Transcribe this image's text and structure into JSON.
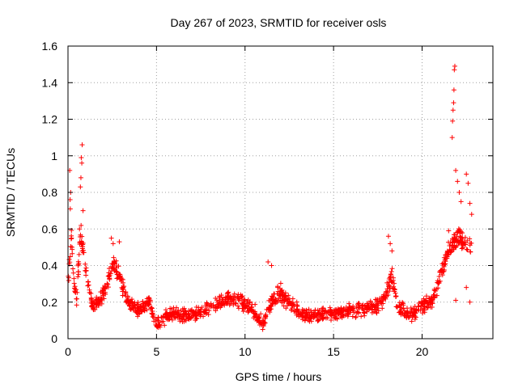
{
  "chart_data": {
    "type": "scatter",
    "title": "Day 267 of 2023, SRMTID for receiver osls",
    "xlabel": "GPS time / hours",
    "ylabel": "SRMTID / TECUs",
    "xlim": [
      0,
      24
    ],
    "ylim": [
      0,
      1.6
    ],
    "xticks": [
      0,
      5,
      10,
      15,
      20
    ],
    "yticks": [
      0,
      0.2,
      0.4,
      0.6,
      0.8,
      1,
      1.2,
      1.4,
      1.6
    ],
    "ytick_labels": [
      "0",
      "0.2",
      "0.4",
      "0.6",
      "0.8",
      "1",
      "1.2",
      "1.4",
      "1.6"
    ],
    "grid": true,
    "marker": "+",
    "series": [
      {
        "name": "SRMTID",
        "color": "#ff0000",
        "profile": [
          [
            0.0,
            0.28
          ],
          [
            0.1,
            0.45
          ],
          [
            0.2,
            0.55
          ],
          [
            0.35,
            0.3
          ],
          [
            0.5,
            0.22
          ],
          [
            0.7,
            0.6
          ],
          [
            0.9,
            0.45
          ],
          [
            1.1,
            0.3
          ],
          [
            1.4,
            0.18
          ],
          [
            1.8,
            0.2
          ],
          [
            2.2,
            0.3
          ],
          [
            2.5,
            0.4
          ],
          [
            2.8,
            0.38
          ],
          [
            3.1,
            0.28
          ],
          [
            3.5,
            0.18
          ],
          [
            4.0,
            0.16
          ],
          [
            4.6,
            0.2
          ],
          [
            4.9,
            0.1
          ],
          [
            5.1,
            0.08
          ],
          [
            5.5,
            0.12
          ],
          [
            6.0,
            0.13
          ],
          [
            7.0,
            0.13
          ],
          [
            8.0,
            0.16
          ],
          [
            9.0,
            0.22
          ],
          [
            9.8,
            0.2
          ],
          [
            10.5,
            0.15
          ],
          [
            11.0,
            0.08
          ],
          [
            11.5,
            0.2
          ],
          [
            12.0,
            0.25
          ],
          [
            12.5,
            0.2
          ],
          [
            13.0,
            0.15
          ],
          [
            13.5,
            0.12
          ],
          [
            14.5,
            0.13
          ],
          [
            15.5,
            0.15
          ],
          [
            16.5,
            0.16
          ],
          [
            17.5,
            0.18
          ],
          [
            18.0,
            0.25
          ],
          [
            18.3,
            0.35
          ],
          [
            18.6,
            0.17
          ],
          [
            19.0,
            0.15
          ],
          [
            19.5,
            0.14
          ],
          [
            20.0,
            0.18
          ],
          [
            20.5,
            0.2
          ],
          [
            20.9,
            0.3
          ],
          [
            21.2,
            0.4
          ],
          [
            21.6,
            0.5
          ],
          [
            22.0,
            0.55
          ],
          [
            22.4,
            0.52
          ],
          [
            22.8,
            0.5
          ]
        ],
        "spikes": [
          [
            0.1,
            0.92
          ],
          [
            0.15,
            0.8
          ],
          [
            0.12,
            0.76
          ],
          [
            0.13,
            0.71
          ],
          [
            0.2,
            0.55
          ],
          [
            0.65,
            0.6
          ],
          [
            0.7,
            0.83
          ],
          [
            0.73,
            0.88
          ],
          [
            0.75,
            0.99
          ],
          [
            0.78,
            0.96
          ],
          [
            0.8,
            1.06
          ],
          [
            0.85,
            0.7
          ],
          [
            2.45,
            0.55
          ],
          [
            2.55,
            0.52
          ],
          [
            2.9,
            0.53
          ],
          [
            11.3,
            0.42
          ],
          [
            11.5,
            0.4
          ],
          [
            18.1,
            0.56
          ],
          [
            18.2,
            0.52
          ],
          [
            18.3,
            0.48
          ],
          [
            21.5,
            0.59
          ],
          [
            21.7,
            1.1
          ],
          [
            21.72,
            1.19
          ],
          [
            21.75,
            1.25
          ],
          [
            21.78,
            1.29
          ],
          [
            21.8,
            1.36
          ],
          [
            21.82,
            1.47
          ],
          [
            21.85,
            1.49
          ],
          [
            21.9,
            0.92
          ],
          [
            22.0,
            0.86
          ],
          [
            22.1,
            0.8
          ],
          [
            22.2,
            0.75
          ],
          [
            22.5,
            0.9
          ],
          [
            22.6,
            0.85
          ],
          [
            22.7,
            0.74
          ],
          [
            22.8,
            0.68
          ],
          [
            22.5,
            0.28
          ],
          [
            22.7,
            0.2
          ],
          [
            21.9,
            0.21
          ]
        ],
        "points_per_hour": 60,
        "scatter_spread": 0.07
      }
    ]
  }
}
